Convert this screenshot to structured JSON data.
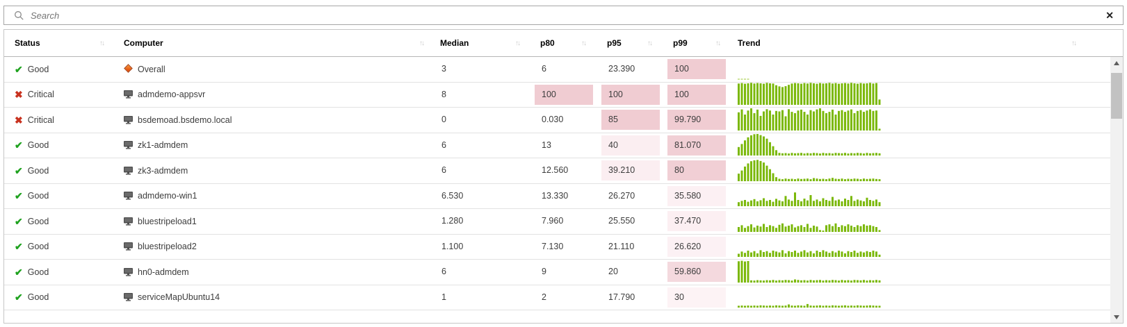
{
  "search": {
    "placeholder": "Search",
    "clear_label": "✕"
  },
  "icons": {
    "good": "✔",
    "critical": "✖",
    "sort": "↑↓"
  },
  "colors": {
    "bar_green": "#7bb80a",
    "bar_light_green": "#cbe294",
    "good_green": "#1fa21f",
    "critical_red": "#c8321f"
  },
  "table": {
    "columns": [
      {
        "label": "Status"
      },
      {
        "label": "Computer"
      },
      {
        "label": "Median"
      },
      {
        "label": "p80"
      },
      {
        "label": "p95"
      },
      {
        "label": "p99"
      },
      {
        "label": "Trend"
      }
    ],
    "rows": [
      {
        "status": "Good",
        "status_kind": "good",
        "computer": "Overall",
        "icon": "overall",
        "median": "3",
        "p80": {
          "v": "6"
        },
        "p95": {
          "v": "23.390"
        },
        "p99": {
          "v": "100",
          "heat": "#f0ccd2"
        },
        "trend": {
          "light": true,
          "bars": [
            6,
            6,
            6,
            6
          ]
        }
      },
      {
        "status": "Critical",
        "status_kind": "critical",
        "computer": "admdemo-appsvr",
        "icon": "computer",
        "median": "8",
        "p80": {
          "v": "100",
          "heat": "#f0ccd2"
        },
        "p95": {
          "v": "100",
          "heat": "#f0ccd2"
        },
        "p99": {
          "v": "100",
          "heat": "#f0ccd2"
        },
        "trend": {
          "light": false,
          "bars": [
            96,
            98,
            95,
            97,
            99,
            96,
            98,
            97,
            95,
            99,
            97,
            96,
            88,
            83,
            80,
            84,
            90,
            96,
            98,
            97,
            95,
            98,
            96,
            99,
            97,
            95,
            98,
            96,
            97,
            99,
            96,
            98,
            95,
            97,
            98,
            96,
            99,
            97,
            95,
            98,
            96,
            97,
            99,
            96,
            98,
            24
          ]
        }
      },
      {
        "status": "Critical",
        "status_kind": "critical",
        "computer": "bsdemoad.bsdemo.local",
        "icon": "computer",
        "median": "0",
        "p80": {
          "v": "0.030"
        },
        "p95": {
          "v": "85",
          "heat": "#f0ccd2"
        },
        "p99": {
          "v": "99.790",
          "heat": "#f0ccd2"
        },
        "trend": {
          "light": false,
          "bars": [
            82,
            95,
            72,
            90,
            100,
            78,
            94,
            66,
            86,
            96,
            90,
            72,
            88,
            86,
            92,
            64,
            96,
            84,
            78,
            90,
            94,
            84,
            72,
            92,
            86,
            95,
            100,
            88,
            78,
            84,
            94,
            72,
            88,
            92,
            84,
            90,
            95,
            78,
            88,
            92,
            84,
            90,
            95,
            88,
            90,
            8
          ]
        }
      },
      {
        "status": "Good",
        "status_kind": "good",
        "computer": "zk1-admdem",
        "icon": "computer",
        "median": "6",
        "p80": {
          "v": "13"
        },
        "p95": {
          "v": "40",
          "heat": "#fbeef1"
        },
        "p99": {
          "v": "81.070",
          "heat": "#f1cfd5"
        },
        "trend": {
          "light": false,
          "bars": [
            38,
            52,
            68,
            82,
            91,
            96,
            97,
            92,
            86,
            76,
            60,
            42,
            24,
            12,
            10,
            11,
            9,
            12,
            10,
            11,
            12,
            9,
            11,
            10,
            12,
            11,
            9,
            12,
            10,
            11,
            9,
            12,
            11,
            10,
            12,
            9,
            11,
            10,
            12,
            11,
            9,
            12,
            10,
            11,
            12,
            10
          ]
        }
      },
      {
        "status": "Good",
        "status_kind": "good",
        "computer": "zk3-admdem",
        "icon": "computer",
        "median": "6",
        "p80": {
          "v": "12.560"
        },
        "p95": {
          "v": "39.210",
          "heat": "#fbeef1"
        },
        "p99": {
          "v": "80",
          "heat": "#f1cfd5"
        },
        "trend": {
          "light": false,
          "bars": [
            34,
            48,
            66,
            80,
            90,
            94,
            96,
            91,
            84,
            70,
            54,
            36,
            18,
            11,
            9,
            12,
            10,
            11,
            9,
            12,
            10,
            11,
            12,
            9,
            14,
            12,
            10,
            11,
            9,
            12,
            15,
            11,
            10,
            12,
            9,
            11,
            10,
            12,
            11,
            9,
            12,
            10,
            11,
            12,
            10,
            9
          ]
        }
      },
      {
        "status": "Good",
        "status_kind": "good",
        "computer": "admdemo-win1",
        "icon": "computer",
        "median": "6.530",
        "p80": {
          "v": "13.330"
        },
        "p95": {
          "v": "26.270"
        },
        "p99": {
          "v": "35.580",
          "heat": "#fcf0f3"
        },
        "trend": {
          "light": false,
          "bars": [
            18,
            24,
            28,
            20,
            26,
            32,
            22,
            27,
            36,
            24,
            28,
            20,
            33,
            26,
            22,
            46,
            30,
            24,
            62,
            28,
            22,
            34,
            26,
            50,
            24,
            30,
            22,
            36,
            28,
            24,
            42,
            26,
            30,
            22,
            34,
            28,
            46,
            24,
            30,
            26,
            22,
            38,
            28,
            24,
            30,
            18
          ]
        }
      },
      {
        "status": "Good",
        "status_kind": "good",
        "computer": "bluestripeload1",
        "icon": "computer",
        "median": "1.280",
        "p80": {
          "v": "7.960"
        },
        "p95": {
          "v": "25.550"
        },
        "p99": {
          "v": "37.470",
          "heat": "#fceff2"
        },
        "trend": {
          "light": false,
          "bars": [
            22,
            30,
            18,
            26,
            34,
            20,
            28,
            24,
            36,
            22,
            30,
            26,
            18,
            32,
            38,
            24,
            28,
            34,
            20,
            26,
            30,
            22,
            36,
            18,
            28,
            24,
            8,
            6,
            30,
            34,
            26,
            38,
            22,
            30,
            26,
            34,
            28,
            22,
            30,
            26,
            34,
            28,
            30,
            26,
            22,
            8
          ]
        }
      },
      {
        "status": "Good",
        "status_kind": "good",
        "computer": "bluestripeload2",
        "icon": "computer",
        "median": "1.100",
        "p80": {
          "v": "7.130"
        },
        "p95": {
          "v": "21.110"
        },
        "p99": {
          "v": "26.620",
          "heat": "#fcf1f4"
        },
        "trend": {
          "light": false,
          "bars": [
            14,
            24,
            18,
            28,
            20,
            26,
            16,
            30,
            22,
            26,
            18,
            28,
            24,
            20,
            30,
            16,
            26,
            22,
            28,
            18,
            24,
            30,
            20,
            26,
            16,
            28,
            22,
            30,
            24,
            18,
            26,
            20,
            28,
            24,
            16,
            26,
            22,
            28,
            18,
            24,
            20,
            26,
            22,
            28,
            24,
            10
          ]
        }
      },
      {
        "status": "Good",
        "status_kind": "good",
        "computer": "hn0-admdem",
        "icon": "computer",
        "median": "6",
        "p80": {
          "v": "9"
        },
        "p95": {
          "v": "20"
        },
        "p99": {
          "v": "59.860",
          "heat": "#f4d9de"
        },
        "trend": {
          "light": false,
          "bars": [
            96,
            98,
            95,
            97,
            10,
            9,
            11,
            10,
            9,
            11,
            10,
            12,
            9,
            11,
            10,
            12,
            11,
            9,
            14,
            12,
            10,
            11,
            9,
            12,
            10,
            11,
            12,
            9,
            11,
            10,
            12,
            11,
            9,
            12,
            10,
            11,
            9,
            12,
            11,
            10,
            12,
            9,
            11,
            10,
            12,
            10
          ]
        }
      },
      {
        "status": "Good",
        "status_kind": "good",
        "computer": "serviceMapUbuntu14",
        "icon": "computer",
        "median": "1",
        "p80": {
          "v": "2"
        },
        "p95": {
          "v": "17.790"
        },
        "p99": {
          "v": "30",
          "heat": "#fdf3f5"
        },
        "trend": {
          "light": false,
          "bars": [
            8,
            9,
            8,
            9,
            8,
            9,
            8,
            10,
            9,
            8,
            9,
            8,
            10,
            9,
            8,
            9,
            14,
            9,
            8,
            10,
            9,
            8,
            16,
            9,
            8,
            9,
            10,
            8,
            9,
            8,
            10,
            9,
            8,
            9,
            10,
            8,
            9,
            8,
            10,
            9,
            8,
            9,
            10,
            9,
            8,
            8
          ]
        }
      }
    ]
  }
}
